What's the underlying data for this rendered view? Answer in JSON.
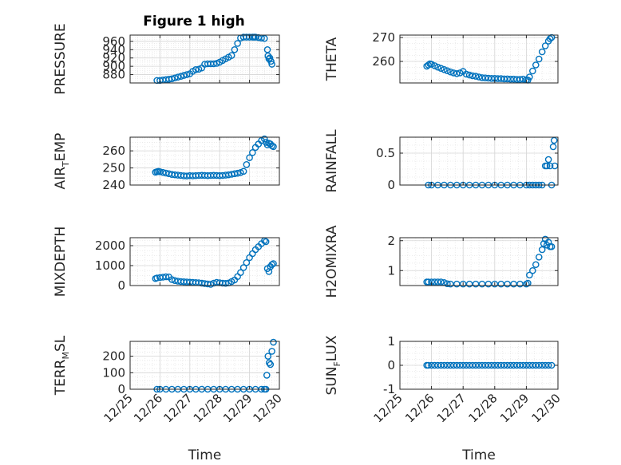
{
  "colors": {
    "marker": "#0072BD",
    "axis": "#262626",
    "grid": "#d6d6d6",
    "minor_grid": "#e6e6e6"
  },
  "chart_data": [
    {
      "id": "pressure",
      "type": "scatter",
      "title": "Figure 1 high",
      "ylabel": {
        "main": "PRESSURE"
      },
      "xlim": [
        0,
        5
      ],
      "ylim": [
        860,
        975
      ],
      "yticks": [
        880,
        900,
        920,
        940,
        960
      ],
      "yticklabels": [
        "880",
        "900",
        "920",
        "940",
        "960"
      ],
      "show_xticklabels": false,
      "x": [
        0.9,
        1.0,
        1.1,
        1.2,
        1.3,
        1.4,
        1.5,
        1.6,
        1.7,
        1.8,
        1.9,
        2.0,
        2.1,
        2.2,
        2.3,
        2.4,
        2.5,
        2.6,
        2.7,
        2.8,
        2.9,
        3.0,
        3.1,
        3.2,
        3.3,
        3.4,
        3.5,
        3.6,
        3.7,
        3.8,
        3.9,
        4.0,
        4.1,
        4.15,
        4.2,
        4.3,
        4.4,
        4.5,
        4.6,
        4.62,
        4.65,
        4.68,
        4.72,
        4.75
      ],
      "y": [
        866,
        866,
        867,
        868,
        869,
        870,
        872,
        874,
        876,
        878,
        880,
        882,
        888,
        892,
        893,
        896,
        905,
        906,
        906,
        906,
        907,
        910,
        914,
        918,
        922,
        926,
        940,
        955,
        968,
        970,
        970,
        970,
        970,
        970,
        970,
        969,
        968,
        967,
        940,
        925,
        918,
        920,
        912,
        905
      ]
    },
    {
      "id": "theta",
      "type": "scatter",
      "ylabel": {
        "main": "THETA"
      },
      "xlim": [
        0,
        5
      ],
      "ylim": [
        251,
        271
      ],
      "yticks": [
        260,
        270
      ],
      "yticklabels": [
        "260",
        "270"
      ],
      "show_xticklabels": false,
      "x": [
        0.85,
        0.9,
        0.95,
        1.0,
        1.1,
        1.2,
        1.3,
        1.4,
        1.5,
        1.6,
        1.7,
        1.8,
        1.9,
        2.0,
        2.1,
        2.2,
        2.3,
        2.4,
        2.5,
        2.6,
        2.7,
        2.8,
        2.9,
        3.0,
        3.1,
        3.2,
        3.3,
        3.4,
        3.5,
        3.6,
        3.7,
        3.8,
        3.9,
        4.0,
        4.05,
        4.1,
        4.2,
        4.3,
        4.4,
        4.5,
        4.6,
        4.7,
        4.75,
        4.8
      ],
      "y": [
        258,
        258.5,
        259,
        258.8,
        258.2,
        257.6,
        257.1,
        256.6,
        256.1,
        255.6,
        255.2,
        254.9,
        255.2,
        255.8,
        254.7,
        254.3,
        254.0,
        253.8,
        253.5,
        253.2,
        253.1,
        253.0,
        252.9,
        252.9,
        252.8,
        252.8,
        252.7,
        252.7,
        252.6,
        252.6,
        252.5,
        252.5,
        252.6,
        252.3,
        252.2,
        253.5,
        256.0,
        258.5,
        261.0,
        264.0,
        266.5,
        268.5,
        269.5,
        270
      ]
    },
    {
      "id": "air_temp",
      "type": "scatter",
      "ylabel": {
        "main": "AIR",
        "sub": "T",
        "rest": "EMP"
      },
      "xlim": [
        0,
        5
      ],
      "ylim": [
        240,
        268
      ],
      "yticks": [
        240,
        250,
        260
      ],
      "yticklabels": [
        "240",
        "250",
        "260"
      ],
      "show_xticklabels": false,
      "x": [
        0.85,
        0.9,
        0.95,
        1.0,
        1.1,
        1.2,
        1.3,
        1.4,
        1.5,
        1.6,
        1.7,
        1.8,
        1.9,
        2.0,
        2.1,
        2.2,
        2.3,
        2.4,
        2.5,
        2.6,
        2.7,
        2.8,
        2.9,
        3.0,
        3.1,
        3.2,
        3.3,
        3.4,
        3.5,
        3.6,
        3.7,
        3.8,
        3.9,
        4.0,
        4.1,
        4.2,
        4.3,
        4.4,
        4.5,
        4.55,
        4.6,
        4.65,
        4.7,
        4.75,
        4.8
      ],
      "y": [
        247.5,
        247.8,
        248.0,
        247.8,
        247.4,
        247.0,
        246.6,
        246.2,
        246.0,
        245.8,
        245.6,
        245.4,
        245.3,
        245.5,
        245.4,
        245.5,
        245.6,
        245.7,
        245.6,
        245.5,
        245.6,
        245.7,
        245.6,
        245.5,
        245.6,
        245.8,
        246.0,
        246.3,
        246.6,
        246.9,
        247.3,
        248.0,
        252.0,
        256.0,
        259.0,
        262.0,
        264.0,
        266.0,
        267.0,
        265.0,
        263.5,
        264.5,
        264.0,
        263.0,
        262.5
      ]
    },
    {
      "id": "rainfall",
      "type": "scatter",
      "ylabel": {
        "main": "RAINFALL"
      },
      "xlim": [
        0,
        5
      ],
      "ylim": [
        0,
        0.75
      ],
      "yticks": [
        0,
        0.5
      ],
      "yticklabels": [
        "0",
        "0.5"
      ],
      "show_xticklabels": false,
      "x": [
        0.9,
        1.0,
        1.2,
        1.4,
        1.6,
        1.8,
        2.0,
        2.2,
        2.4,
        2.6,
        2.8,
        3.0,
        3.2,
        3.4,
        3.6,
        3.8,
        4.0,
        4.1,
        4.2,
        4.3,
        4.4,
        4.5,
        4.6,
        4.65,
        4.7,
        4.75,
        4.8,
        4.85,
        4.88,
        4.9
      ],
      "y": [
        0,
        0,
        0,
        0,
        0,
        0,
        0,
        0,
        0,
        0,
        0,
        0,
        0,
        0,
        0,
        0,
        0,
        0,
        0,
        0,
        0,
        0,
        0.3,
        0.3,
        0.4,
        0.3,
        0,
        0.6,
        0.7,
        0.3
      ]
    },
    {
      "id": "mixdepth",
      "type": "scatter",
      "ylabel": {
        "main": "MIXDEPTH"
      },
      "xlim": [
        0,
        5
      ],
      "ylim": [
        0,
        2400
      ],
      "yticks": [
        0,
        1000,
        2000
      ],
      "yticklabels": [
        "0",
        "1000",
        "2000"
      ],
      "show_xticklabels": false,
      "x": [
        0.85,
        0.9,
        1.0,
        1.1,
        1.2,
        1.3,
        1.4,
        1.5,
        1.6,
        1.7,
        1.8,
        1.9,
        2.0,
        2.1,
        2.2,
        2.3,
        2.4,
        2.5,
        2.6,
        2.7,
        2.8,
        2.9,
        3.0,
        3.1,
        3.2,
        3.3,
        3.4,
        3.5,
        3.6,
        3.7,
        3.8,
        3.9,
        4.0,
        4.1,
        4.2,
        4.3,
        4.4,
        4.5,
        4.55,
        4.6,
        4.65,
        4.7,
        4.75,
        4.8
      ],
      "y": [
        350,
        380,
        400,
        420,
        440,
        430,
        300,
        250,
        220,
        200,
        190,
        180,
        170,
        160,
        150,
        140,
        120,
        100,
        80,
        60,
        120,
        160,
        140,
        120,
        110,
        130,
        200,
        280,
        450,
        650,
        900,
        1150,
        1400,
        1600,
        1800,
        1950,
        2100,
        2250,
        2200,
        850,
        700,
        950,
        1050,
        1100
      ]
    },
    {
      "id": "h2omixra",
      "type": "scatter",
      "ylabel": {
        "main": "H2OMIXRA"
      },
      "xlim": [
        0,
        5
      ],
      "ylim": [
        0.5,
        2.1
      ],
      "yticks": [
        1,
        2
      ],
      "yticklabels": [
        "1",
        "2"
      ],
      "show_xticklabels": false,
      "x": [
        0.85,
        0.9,
        1.0,
        1.1,
        1.2,
        1.3,
        1.4,
        1.5,
        1.6,
        1.8,
        2.0,
        2.2,
        2.4,
        2.6,
        2.8,
        3.0,
        3.2,
        3.4,
        3.6,
        3.8,
        4.0,
        4.05,
        4.1,
        4.2,
        4.3,
        4.4,
        4.5,
        4.55,
        4.6,
        4.65,
        4.7,
        4.75,
        4.8
      ],
      "y": [
        0.62,
        0.62,
        0.62,
        0.62,
        0.62,
        0.62,
        0.6,
        0.56,
        0.55,
        0.55,
        0.55,
        0.55,
        0.55,
        0.55,
        0.55,
        0.55,
        0.55,
        0.55,
        0.55,
        0.55,
        0.55,
        0.58,
        0.85,
        1.0,
        1.2,
        1.45,
        1.7,
        1.9,
        2.05,
        1.85,
        1.95,
        1.8,
        1.8
      ]
    },
    {
      "id": "terr_msl",
      "type": "scatter",
      "ylabel": {
        "main": "TERR",
        "sub": "M",
        "rest": "SL"
      },
      "xlim": [
        0,
        5
      ],
      "ylim": [
        0,
        290
      ],
      "yticks": [
        0,
        100,
        200
      ],
      "yticklabels": [
        "0",
        "100",
        "200"
      ],
      "show_xticklabels": true,
      "xlabel": "Time",
      "xticks": [
        0,
        1,
        2,
        3,
        4,
        5
      ],
      "xticklabels": [
        "12/25",
        "12/26",
        "12/27",
        "12/28",
        "12/29",
        "12/30"
      ],
      "x": [
        0.9,
        1.0,
        1.2,
        1.4,
        1.6,
        1.8,
        2.0,
        2.2,
        2.4,
        2.6,
        2.8,
        3.0,
        3.2,
        3.4,
        3.6,
        3.8,
        4.0,
        4.2,
        4.4,
        4.5,
        4.55,
        4.58,
        4.62,
        4.66,
        4.7,
        4.75,
        4.8
      ],
      "y": [
        0,
        0,
        0,
        0,
        0,
        0,
        0,
        0,
        0,
        0,
        0,
        0,
        0,
        0,
        0,
        0,
        0,
        0,
        0,
        0,
        0,
        85,
        200,
        160,
        150,
        230,
        285
      ]
    },
    {
      "id": "sun_flux",
      "type": "scatter",
      "ylabel": {
        "main": "SUN",
        "sub": "F",
        "rest": "LUX"
      },
      "xlim": [
        0,
        5
      ],
      "ylim": [
        -1,
        1
      ],
      "yticks": [
        -1,
        0,
        1
      ],
      "yticklabels": [
        "-1",
        "0",
        "1"
      ],
      "show_xticklabels": true,
      "xlabel": "Time",
      "xticks": [
        0,
        1,
        2,
        3,
        4,
        5
      ],
      "xticklabels": [
        "12/25",
        "12/26",
        "12/27",
        "12/28",
        "12/29",
        "12/30"
      ],
      "x": [
        0.85,
        0.9,
        1.0,
        1.1,
        1.2,
        1.3,
        1.4,
        1.5,
        1.6,
        1.7,
        1.8,
        1.9,
        2.0,
        2.1,
        2.2,
        2.3,
        2.4,
        2.5,
        2.6,
        2.7,
        2.8,
        2.9,
        3.0,
        3.1,
        3.2,
        3.3,
        3.4,
        3.5,
        3.6,
        3.7,
        3.8,
        3.9,
        4.0,
        4.1,
        4.2,
        4.3,
        4.4,
        4.5,
        4.6,
        4.7,
        4.8
      ],
      "y": [
        0,
        0,
        0,
        0,
        0,
        0,
        0,
        0,
        0,
        0,
        0,
        0,
        0,
        0,
        0,
        0,
        0,
        0,
        0,
        0,
        0,
        0,
        0,
        0,
        0,
        0,
        0,
        0,
        0,
        0,
        0,
        0,
        0,
        0,
        0,
        0,
        0,
        0,
        0,
        0,
        0
      ]
    }
  ]
}
